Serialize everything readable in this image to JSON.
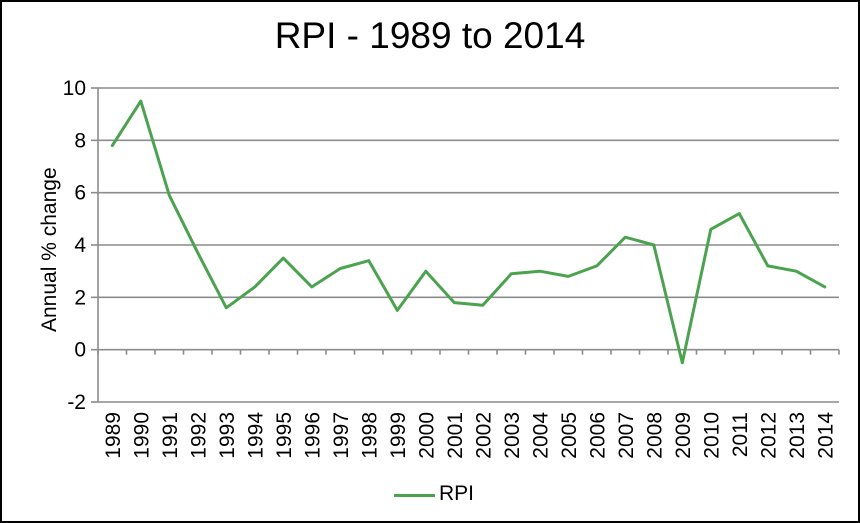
{
  "window": {
    "background": "#ffffff",
    "border_color": "#000000"
  },
  "chart_data": {
    "type": "line",
    "title": "RPI - 1989 to 2014",
    "xlabel": "",
    "ylabel": "Annual % change",
    "categories": [
      "1989",
      "1990",
      "1991",
      "1992",
      "1993",
      "1994",
      "1995",
      "1996",
      "1997",
      "1998",
      "1999",
      "2000",
      "2001",
      "2002",
      "2003",
      "2004",
      "2005",
      "2006",
      "2007",
      "2008",
      "2009",
      "2010",
      "2011",
      "2012",
      "2013",
      "2014"
    ],
    "series": [
      {
        "name": "RPI",
        "color": "#4BA24F",
        "values": [
          7.8,
          9.5,
          5.9,
          3.7,
          1.6,
          2.4,
          3.5,
          2.4,
          3.1,
          3.4,
          1.5,
          3.0,
          1.8,
          1.7,
          2.9,
          3.0,
          2.8,
          3.2,
          4.3,
          4.0,
          -0.5,
          4.6,
          5.2,
          3.2,
          3.0,
          2.4
        ]
      }
    ],
    "ylim": [
      -2,
      10
    ],
    "yticks": [
      10,
      8,
      6,
      4,
      2,
      0,
      -2
    ],
    "grid": true,
    "grid_color": "#8C8C8C",
    "axis_color": "#8C8C8C",
    "text_color": "#000000",
    "legend_position": "bottom"
  }
}
